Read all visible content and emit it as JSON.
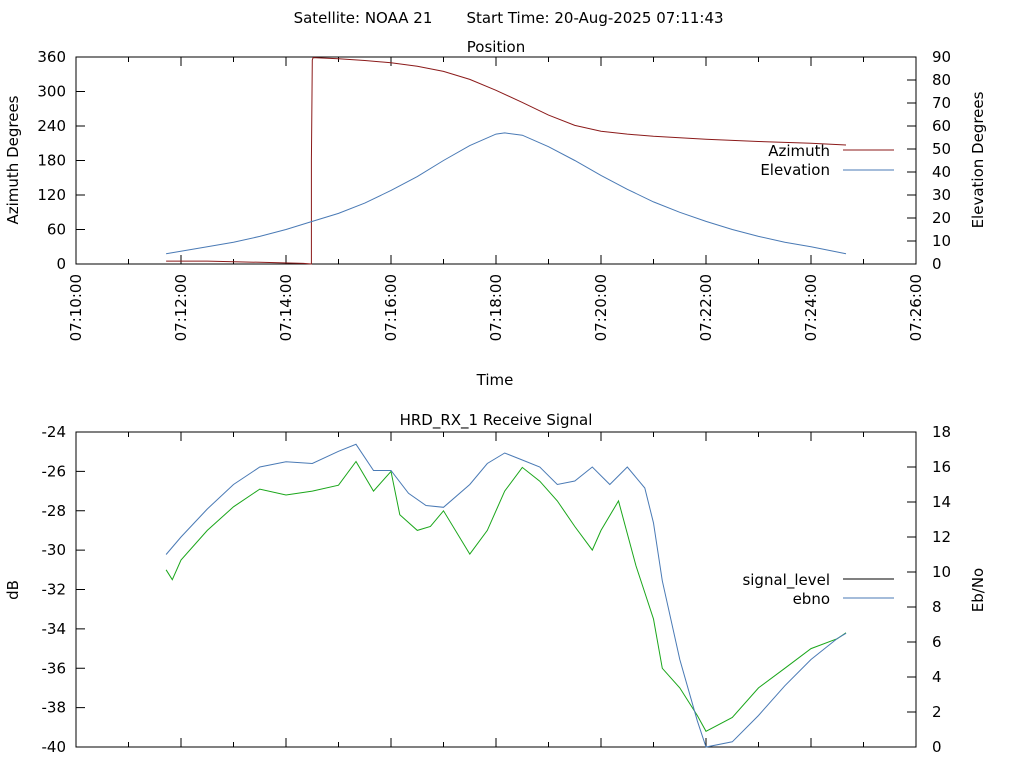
{
  "header": {
    "satellite_label": "Satellite: NOAA 21",
    "start_label": "Start Time: 20-Aug-2025 07:11:43"
  },
  "colors": {
    "azimuth": "#8b1a1a",
    "elevation": "#4a7ab5",
    "signal_level": "#1aa61a",
    "ebno": "#4a7ab5",
    "legend_signal_level": "#000000"
  },
  "chart_data": [
    {
      "type": "line",
      "title": "Position",
      "xlabel": "Time",
      "ylabel": "Azimuth Degrees",
      "y2label": "Elevation Degrees",
      "x_ticks": [
        "07:10:00",
        "07:12:00",
        "07:14:00",
        "07:16:00",
        "07:18:00",
        "07:20:00",
        "07:22:00",
        "07:24:00",
        "07:26:00"
      ],
      "xlim": [
        "07:10:00",
        "07:26:00"
      ],
      "ylim": [
        0,
        360
      ],
      "y_ticks": [
        0,
        60,
        120,
        180,
        240,
        300,
        360
      ],
      "y2lim": [
        0,
        90
      ],
      "y2_ticks": [
        0,
        10,
        20,
        30,
        40,
        50,
        60,
        70,
        80,
        90
      ],
      "legend_position": "right",
      "series": [
        {
          "name": "Azimuth",
          "axis": "y",
          "x": [
            "07:11:43",
            "07:12:30",
            "07:13:30",
            "07:14:20",
            "07:14:29",
            "07:14:29",
            "07:14:30",
            "07:14:31",
            "07:15:00",
            "07:15:30",
            "07:16:00",
            "07:16:30",
            "07:17:00",
            "07:17:30",
            "07:18:00",
            "07:18:30",
            "07:19:00",
            "07:19:30",
            "07:20:00",
            "07:20:30",
            "07:21:00",
            "07:22:00",
            "07:23:00",
            "07:24:00",
            "07:24:40"
          ],
          "values": [
            5,
            5,
            3,
            1,
            0,
            180,
            355,
            359,
            357,
            354,
            350,
            344,
            335,
            321,
            302,
            281,
            259,
            241,
            231,
            226,
            222,
            217,
            213,
            210,
            207
          ]
        },
        {
          "name": "Elevation",
          "axis": "y2",
          "x": [
            "07:11:43",
            "07:12:30",
            "07:13:00",
            "07:13:30",
            "07:14:00",
            "07:14:30",
            "07:15:00",
            "07:15:30",
            "07:16:00",
            "07:16:30",
            "07:17:00",
            "07:17:30",
            "07:18:00",
            "07:18:10",
            "07:18:30",
            "07:19:00",
            "07:19:30",
            "07:20:00",
            "07:20:30",
            "07:21:00",
            "07:21:30",
            "07:22:00",
            "07:22:30",
            "07:23:00",
            "07:23:30",
            "07:24:00",
            "07:24:40"
          ],
          "values": [
            4.5,
            7.5,
            9.5,
            12,
            15,
            18.5,
            22,
            26.5,
            32,
            38,
            45,
            51.5,
            56.5,
            57,
            56,
            51,
            45,
            38.5,
            32.5,
            27,
            22.5,
            18.5,
            15,
            12,
            9.5,
            7.5,
            4.5
          ]
        }
      ]
    },
    {
      "type": "line",
      "title": "HRD_RX_1 Receive Signal",
      "xlabel": "",
      "ylabel": "dB",
      "y2label": "Eb/No",
      "xlim": [
        "07:10:00",
        "07:26:00"
      ],
      "ylim": [
        -40,
        -24
      ],
      "y_ticks": [
        -40,
        -38,
        -36,
        -34,
        -32,
        -30,
        -28,
        -26,
        -24
      ],
      "y2lim": [
        0,
        18
      ],
      "y2_ticks": [
        0,
        2,
        4,
        6,
        8,
        10,
        12,
        14,
        16,
        18
      ],
      "legend_position": "right",
      "series": [
        {
          "name": "signal_level",
          "axis": "y",
          "x": [
            "07:11:43",
            "07:11:50",
            "07:12:00",
            "07:12:30",
            "07:13:00",
            "07:13:30",
            "07:14:00",
            "07:14:30",
            "07:15:00",
            "07:15:20",
            "07:15:40",
            "07:16:00",
            "07:16:10",
            "07:16:30",
            "07:16:45",
            "07:17:00",
            "07:17:30",
            "07:17:50",
            "07:18:10",
            "07:18:30",
            "07:18:50",
            "07:19:10",
            "07:19:30",
            "07:19:50",
            "07:20:00",
            "07:20:20",
            "07:20:40",
            "07:21:00",
            "07:21:10",
            "07:21:30",
            "07:21:50",
            "07:22:00",
            "07:22:30",
            "07:23:00",
            "07:23:30",
            "07:24:00",
            "07:24:30",
            "07:24:40"
          ],
          "values": [
            -31.0,
            -31.5,
            -30.5,
            -29.0,
            -27.8,
            -26.9,
            -27.2,
            -27.0,
            -26.7,
            -25.5,
            -27.0,
            -26.0,
            -28.2,
            -29.0,
            -28.8,
            -28.0,
            -30.2,
            -29.0,
            -27.0,
            -25.8,
            -26.5,
            -27.5,
            -28.8,
            -30.0,
            -29.0,
            -27.5,
            -30.8,
            -33.5,
            -36.0,
            -37.0,
            -38.4,
            -39.2,
            -38.5,
            -37.0,
            -36.0,
            -35.0,
            -34.5,
            -34.2
          ]
        },
        {
          "name": "ebno",
          "axis": "y2",
          "x": [
            "07:11:43",
            "07:12:00",
            "07:12:30",
            "07:13:00",
            "07:13:30",
            "07:14:00",
            "07:14:30",
            "07:15:00",
            "07:15:20",
            "07:15:40",
            "07:16:00",
            "07:16:20",
            "07:16:40",
            "07:17:00",
            "07:17:30",
            "07:17:50",
            "07:18:10",
            "07:18:30",
            "07:18:50",
            "07:19:10",
            "07:19:30",
            "07:19:50",
            "07:20:10",
            "07:20:30",
            "07:20:50",
            "07:21:00",
            "07:21:10",
            "07:21:30",
            "07:21:50",
            "07:22:00",
            "07:22:30",
            "07:23:00",
            "07:23:30",
            "07:24:00",
            "07:24:30",
            "07:24:40"
          ],
          "values": [
            11.0,
            12.0,
            13.6,
            15.0,
            16.0,
            16.3,
            16.2,
            16.9,
            17.3,
            15.8,
            15.8,
            14.5,
            13.8,
            13.7,
            15.0,
            16.2,
            16.8,
            16.4,
            16.0,
            15.0,
            15.2,
            16.0,
            15.0,
            16.0,
            14.8,
            12.8,
            9.5,
            5.0,
            1.5,
            0.0,
            0.3,
            1.8,
            3.5,
            5.0,
            6.2,
            6.5
          ]
        }
      ]
    }
  ]
}
